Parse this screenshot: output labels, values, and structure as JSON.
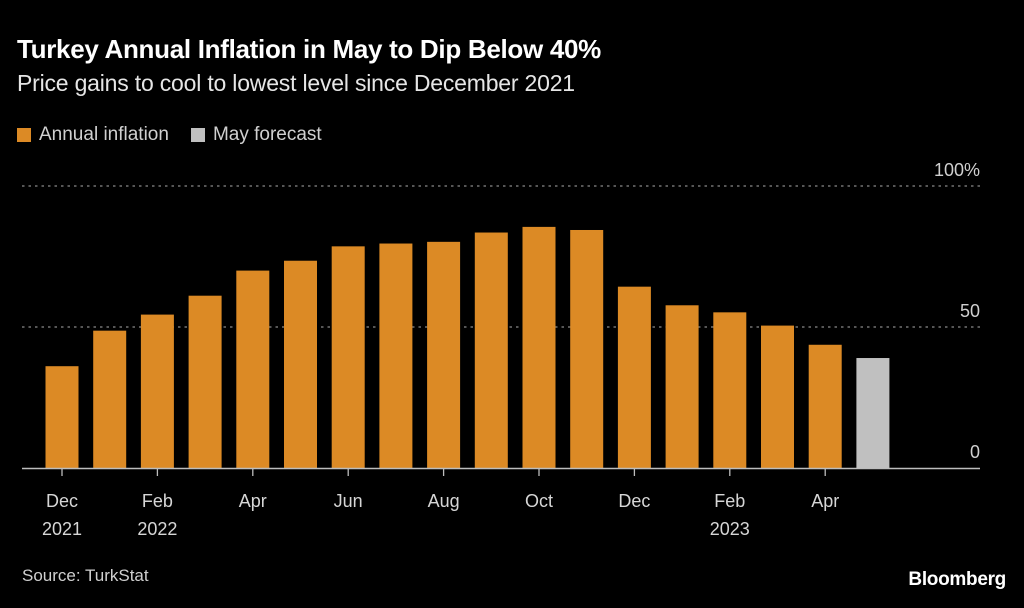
{
  "header": {
    "title": "Turkey Annual Inflation in May to Dip Below 40%",
    "subtitle": "Price gains to cool to lowest level since December 2021"
  },
  "legend": [
    {
      "label": "Annual inflation",
      "color": "#dc8a25"
    },
    {
      "label": "May forecast",
      "color": "#c0c0c0"
    }
  ],
  "footer": {
    "source": "Source: TurkStat",
    "brand": "Bloomberg"
  },
  "chart_data": {
    "type": "bar",
    "title": "Turkey Annual Inflation in May to Dip Below 40%",
    "subtitle": "Price gains to cool to lowest level since December 2021",
    "xlabel": "",
    "ylabel": "",
    "ylim": [
      0,
      100
    ],
    "yticks": [
      {
        "value": 0,
        "label": "0"
      },
      {
        "value": 50,
        "label": "50"
      },
      {
        "value": 100,
        "label": "100%"
      }
    ],
    "grid": true,
    "legend_position": "top-left",
    "categories": [
      "Dec 2021",
      "Jan 2022",
      "Feb 2022",
      "Mar 2022",
      "Apr 2022",
      "May 2022",
      "Jun 2022",
      "Jul 2022",
      "Aug 2022",
      "Sep 2022",
      "Oct 2022",
      "Nov 2022",
      "Dec 2022",
      "Jan 2023",
      "Feb 2023",
      "Mar 2023",
      "Apr 2023",
      "May 2023"
    ],
    "xtick_labels": [
      {
        "index": 0,
        "line1": "Dec",
        "line2": "2021"
      },
      {
        "index": 2,
        "line1": "Feb",
        "line2": "2022"
      },
      {
        "index": 4,
        "line1": "Apr",
        "line2": ""
      },
      {
        "index": 6,
        "line1": "Jun",
        "line2": ""
      },
      {
        "index": 8,
        "line1": "Aug",
        "line2": ""
      },
      {
        "index": 10,
        "line1": "Oct",
        "line2": ""
      },
      {
        "index": 12,
        "line1": "Dec",
        "line2": ""
      },
      {
        "index": 14,
        "line1": "Feb",
        "line2": "2023"
      },
      {
        "index": 16,
        "line1": "Apr",
        "line2": ""
      }
    ],
    "series": [
      {
        "name": "Annual inflation",
        "color": "#dc8a25",
        "values": [
          36.1,
          48.7,
          54.4,
          61.1,
          70.0,
          73.5,
          78.6,
          79.6,
          80.2,
          83.5,
          85.5,
          84.4,
          64.3,
          57.7,
          55.2,
          50.5,
          43.7,
          null
        ]
      },
      {
        "name": "May forecast",
        "color": "#c0c0c0",
        "values": [
          null,
          null,
          null,
          null,
          null,
          null,
          null,
          null,
          null,
          null,
          null,
          null,
          null,
          null,
          null,
          null,
          null,
          39.0
        ]
      }
    ]
  }
}
